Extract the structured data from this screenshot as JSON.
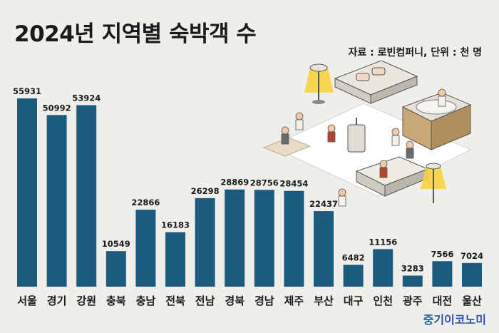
{
  "title": "2024년 지역별 숙박객 수",
  "source": "자료 : 로빈컴퍼니, 단위 : 천 명",
  "brand": "중기이코노미",
  "colors": {
    "bar": "#1d5b7e",
    "background": "#f0eeeb",
    "brand": "#2a55a4"
  },
  "chart_data": {
    "type": "bar",
    "title": "2024년 지역별 숙박객 수",
    "xlabel": "",
    "ylabel": "",
    "unit": "천 명",
    "categories": [
      "서울",
      "경기",
      "강원",
      "충북",
      "충남",
      "전북",
      "전남",
      "경북",
      "경남",
      "제주",
      "부산",
      "대구",
      "인천",
      "광주",
      "대전",
      "울산"
    ],
    "values": [
      55931,
      50992,
      53924,
      10549,
      22866,
      16183,
      26298,
      28869,
      28756,
      28454,
      22437,
      6482,
      11156,
      3283,
      7566,
      7024
    ],
    "ylim": [
      0,
      55931
    ],
    "grid": false,
    "legend": "none"
  }
}
